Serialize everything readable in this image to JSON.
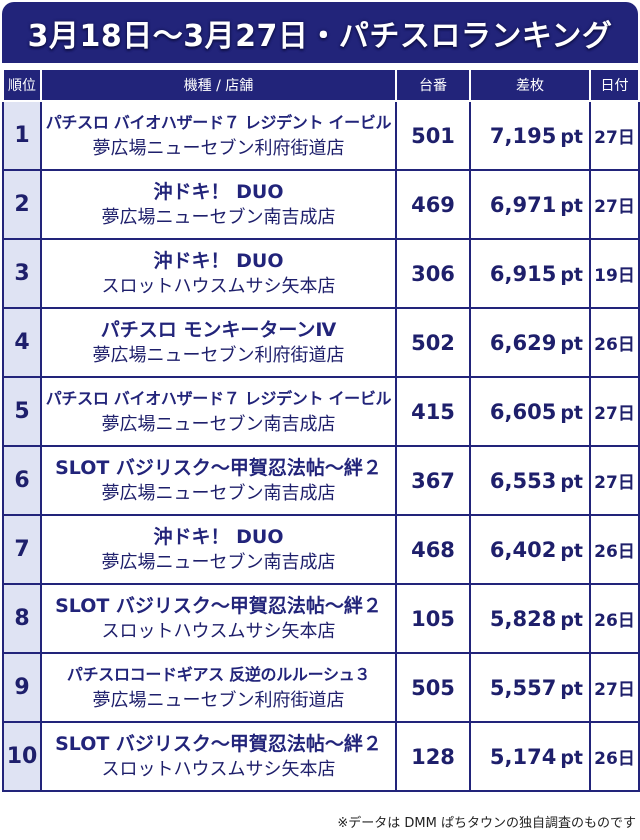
{
  "title": "3月18日〜3月27日・パチスロランキング",
  "headers": {
    "rank": "順位",
    "machine_store": "機種 / 店舗",
    "unit": "台番",
    "coins": "差枚",
    "date": "日付"
  },
  "coin_unit": "pt",
  "rows": [
    {
      "rank": "1",
      "machine": "パチスロ バイオハザード７ レジデント イービル",
      "store": "夢広場ニューセブン利府街道店",
      "unit": "501",
      "coins": "7,195",
      "date": "27日"
    },
    {
      "rank": "2",
      "machine": "沖ドキ！ DUO",
      "store": "夢広場ニューセブン南吉成店",
      "unit": "469",
      "coins": "6,971",
      "date": "27日"
    },
    {
      "rank": "3",
      "machine": "沖ドキ！ DUO",
      "store": "スロットハウスムサシ矢本店",
      "unit": "306",
      "coins": "6,915",
      "date": "19日"
    },
    {
      "rank": "4",
      "machine": "パチスロ モンキーターンⅣ",
      "store": "夢広場ニューセブン利府街道店",
      "unit": "502",
      "coins": "6,629",
      "date": "26日"
    },
    {
      "rank": "5",
      "machine": "パチスロ バイオハザード７ レジデント イービル",
      "store": "夢広場ニューセブン南吉成店",
      "unit": "415",
      "coins": "6,605",
      "date": "27日"
    },
    {
      "rank": "6",
      "machine": "SLOT バジリスク〜甲賀忍法帖〜絆２",
      "store": "夢広場ニューセブン南吉成店",
      "unit": "367",
      "coins": "6,553",
      "date": "27日"
    },
    {
      "rank": "7",
      "machine": "沖ドキ！ DUO",
      "store": "夢広場ニューセブン南吉成店",
      "unit": "468",
      "coins": "6,402",
      "date": "26日"
    },
    {
      "rank": "8",
      "machine": "SLOT バジリスク〜甲賀忍法帖〜絆２",
      "store": "スロットハウスムサシ矢本店",
      "unit": "105",
      "coins": "5,828",
      "date": "26日"
    },
    {
      "rank": "9",
      "machine": "パチスロコードギアス 反逆のルルーシュ３",
      "store": "夢広場ニューセブン利府街道店",
      "unit": "505",
      "coins": "5,557",
      "date": "27日"
    },
    {
      "rank": "10",
      "machine": "SLOT バジリスク〜甲賀忍法帖〜絆２",
      "store": "スロットハウスムサシ矢本店",
      "unit": "128",
      "coins": "5,174",
      "date": "26日"
    }
  ],
  "footnote": "※データは DMM ぱちタウンの独自調査のものです",
  "colors": {
    "navy": "#22247a",
    "rank_cell_bg": "#dfe3f3",
    "text": "#1e1f6b"
  }
}
